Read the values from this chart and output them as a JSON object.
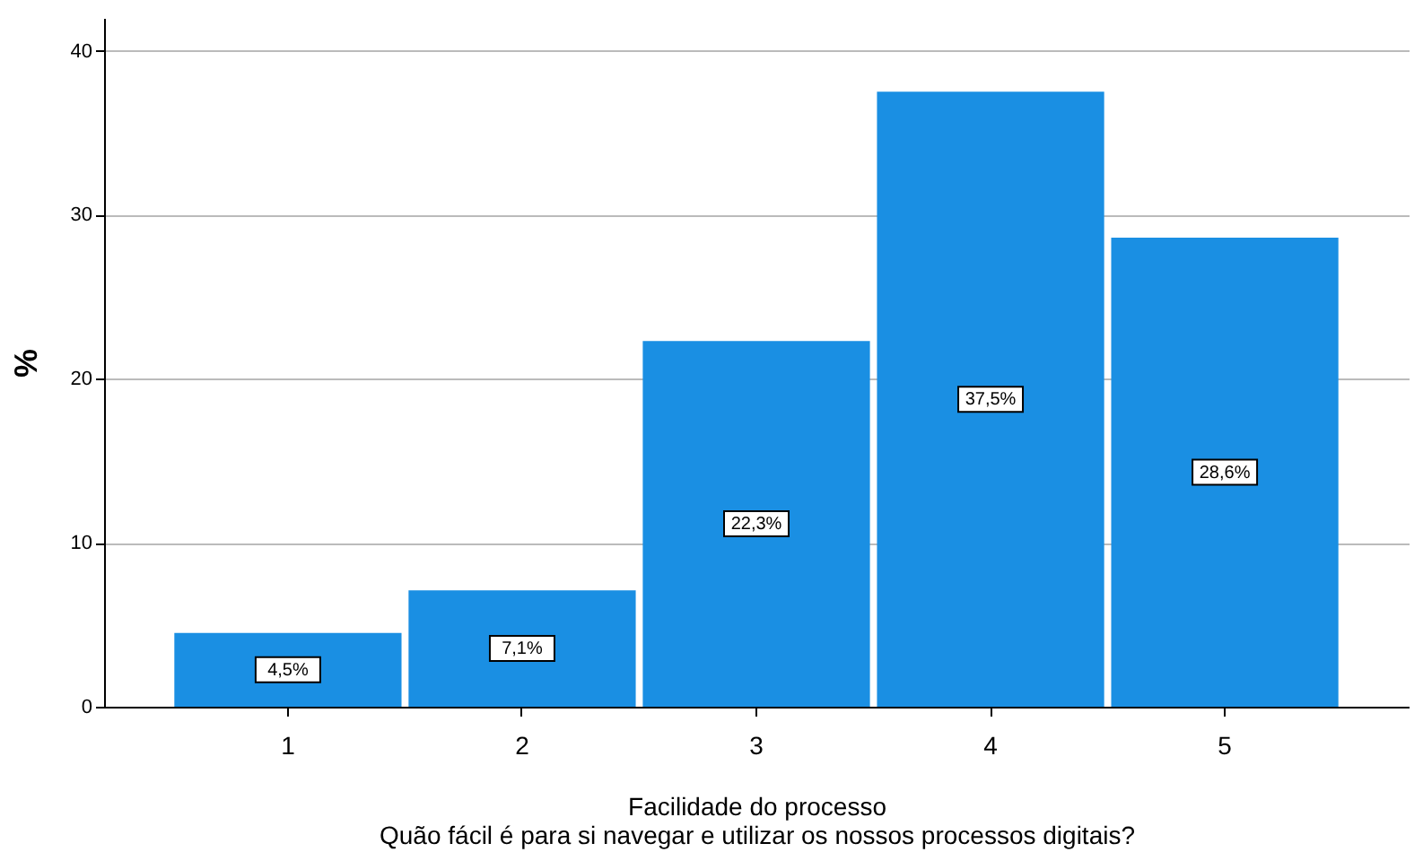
{
  "chart_data": {
    "type": "bar",
    "xlabel": "Facilidade do processo\nQuão fácil é para si navegar e utilizar os nossos processos digitais?",
    "ylabel": "%",
    "categories": [
      "1",
      "2",
      "3",
      "4",
      "5"
    ],
    "values": [
      4.5,
      7.1,
      22.3,
      37.5,
      28.6
    ],
    "value_labels": [
      "4,5%",
      "7,1%",
      "22,3%",
      "37,5%",
      "28,6%"
    ],
    "color": "#1a8fe3",
    "ylim": [
      0,
      42
    ],
    "yticks": [
      0,
      10,
      20,
      30,
      40
    ],
    "grid": "y"
  }
}
